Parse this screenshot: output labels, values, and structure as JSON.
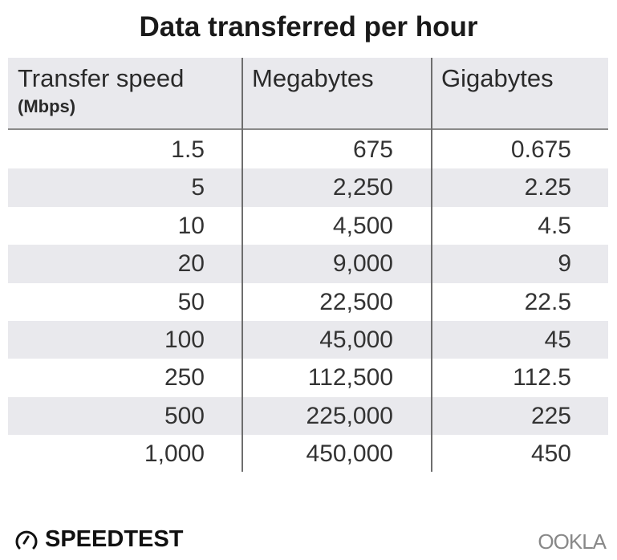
{
  "chart_data": {
    "type": "table",
    "title": "Data transferred per hour",
    "columns": [
      {
        "label": "Transfer speed",
        "sublabel": "(Mbps)"
      },
      {
        "label": "Megabytes"
      },
      {
        "label": "Gigabytes"
      }
    ],
    "rows": [
      [
        "1.5",
        "675",
        "0.675"
      ],
      [
        "5",
        "2,250",
        "2.25"
      ],
      [
        "10",
        "4,500",
        "4.5"
      ],
      [
        "20",
        "9,000",
        "9"
      ],
      [
        "50",
        "22,500",
        "22.5"
      ],
      [
        "100",
        "45,000",
        "45"
      ],
      [
        "250",
        "112,500",
        "112.5"
      ],
      [
        "500",
        "225,000",
        "225"
      ],
      [
        "1,000",
        "450,000",
        "450"
      ]
    ]
  },
  "branding": {
    "left": "SPEEDTEST",
    "right": "OOKLA"
  },
  "colors": {
    "header_bg": "#e9e9ed",
    "alt_row_bg": "#e9e9ed",
    "divider": "#6e6e6e"
  }
}
